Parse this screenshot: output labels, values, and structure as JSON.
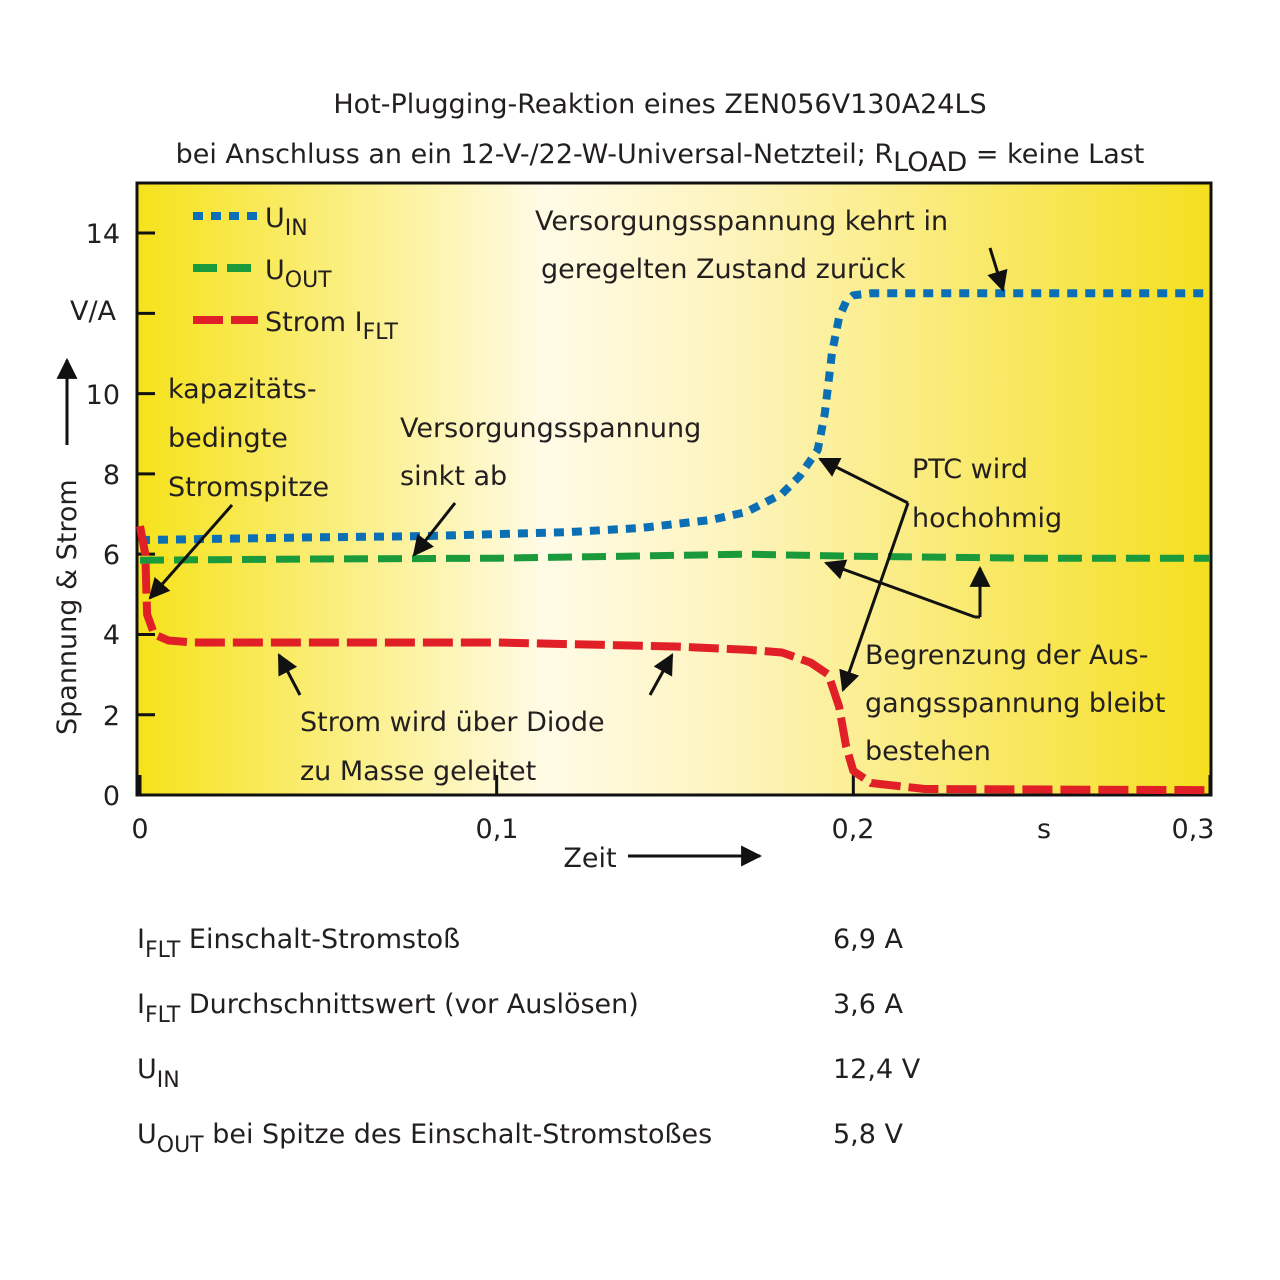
{
  "chart_data": {
    "type": "line",
    "title_line1": "Hot-Plugging-Reaktion eines ZEN056V130A24LS",
    "title_line2_pre": "bei Anschluss an ein 12-V-/22-W-Universal-Netzteil; R",
    "title_line2_sub": "LOAD",
    "title_line2_post": " = keine Last",
    "xlabel": "Zeit",
    "xunit": "s",
    "ylabel": "Spannung & Strom",
    "yunit": "V/A",
    "xlim": [
      0,
      0.3
    ],
    "ylim": [
      0,
      15
    ],
    "xticks": [
      {
        "v": 0,
        "label": "0"
      },
      {
        "v": 0.1,
        "label": "0,1"
      },
      {
        "v": 0.2,
        "label": "0,2"
      },
      {
        "v": 0.3,
        "label": "0,3"
      }
    ],
    "yticks": [
      {
        "v": 0,
        "label": "0"
      },
      {
        "v": 2,
        "label": "2"
      },
      {
        "v": 4,
        "label": "4"
      },
      {
        "v": 6,
        "label": "6"
      },
      {
        "v": 8,
        "label": "8"
      },
      {
        "v": 10,
        "label": "10"
      },
      {
        "v": 14,
        "label": "14"
      }
    ],
    "series": [
      {
        "name": "UIN",
        "label_main": "U",
        "label_sub": "IN",
        "color": "#0a6fb5",
        "style": "dotted",
        "x": [
          0,
          0.02,
          0.05,
          0.08,
          0.1,
          0.12,
          0.14,
          0.16,
          0.17,
          0.18,
          0.185,
          0.19,
          0.192,
          0.194,
          0.196,
          0.198,
          0.2,
          0.205,
          0.21,
          0.25,
          0.3
        ],
        "y": [
          6.35,
          6.38,
          6.42,
          6.45,
          6.5,
          6.55,
          6.65,
          6.85,
          7.05,
          7.5,
          7.95,
          8.6,
          9.5,
          11.0,
          11.9,
          12.3,
          12.45,
          12.5,
          12.5,
          12.5,
          12.5
        ]
      },
      {
        "name": "UOUT",
        "label_main": "U",
        "label_sub": "OUT",
        "color": "#1a9a3a",
        "style": "dashed",
        "x": [
          0,
          0.05,
          0.1,
          0.15,
          0.17,
          0.2,
          0.25,
          0.3
        ],
        "y": [
          5.85,
          5.88,
          5.9,
          5.97,
          6.0,
          5.95,
          5.9,
          5.9
        ]
      },
      {
        "name": "Strom IFLT",
        "label_main": "Strom I",
        "label_sub": "FLT",
        "color": "#e01f26",
        "style": "longdash",
        "x": [
          0,
          0.0015,
          0.002,
          0.004,
          0.008,
          0.015,
          0.05,
          0.1,
          0.15,
          0.17,
          0.18,
          0.188,
          0.193,
          0.196,
          0.198,
          0.2,
          0.205,
          0.22,
          0.3
        ],
        "y": [
          6.7,
          6.0,
          4.5,
          4.0,
          3.85,
          3.8,
          3.8,
          3.8,
          3.7,
          3.62,
          3.55,
          3.3,
          3.0,
          2.2,
          1.2,
          0.6,
          0.3,
          0.15,
          0.12
        ]
      }
    ],
    "annotations": {
      "kapazitaet": [
        "kapazitäts-",
        "bedingte",
        "Stromspitze"
      ],
      "sinkt": [
        "Versorgungsspannung",
        "sinkt ab"
      ],
      "kehrt": [
        "Versorgungsspannung kehrt in",
        "geregelten Zustand zurück"
      ],
      "ptc": [
        "PTC wird",
        "hochohmig"
      ],
      "begrenzung": [
        "Begrenzung der Aus-",
        "gangsspannung bleibt",
        "bestehen"
      ],
      "diode": [
        "Strom wird über Diode",
        "zu Masse geleitet"
      ]
    }
  },
  "table": [
    {
      "main": "I",
      "sub": "FLT",
      "rest": " Einschalt-Stromstoß",
      "value": "6,9 A"
    },
    {
      "main": "I",
      "sub": "FLT",
      "rest": " Durchschnittswert (vor Auslösen)",
      "value": "3,6 A"
    },
    {
      "main": "U",
      "sub": "IN",
      "rest": "",
      "value": "12,4 V"
    },
    {
      "main": "U",
      "sub": "OUT",
      "rest": " bei Spitze des Einschalt-Stromstoßes",
      "value": "5,8 V"
    }
  ]
}
